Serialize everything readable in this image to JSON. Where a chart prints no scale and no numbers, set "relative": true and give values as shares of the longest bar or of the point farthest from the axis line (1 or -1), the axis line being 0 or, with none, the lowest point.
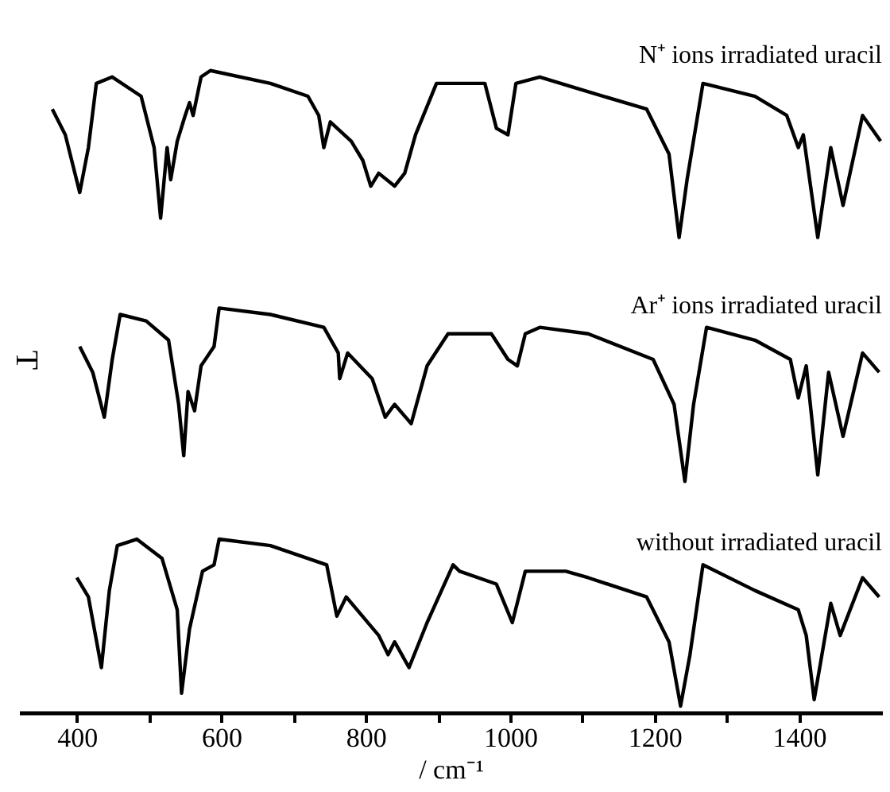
{
  "chart_data": {
    "type": "line",
    "relative": true,
    "xlabel": "/ cm⁻¹",
    "ylabel": "T",
    "xlim": [
      320,
      1515
    ],
    "xticks": [
      400,
      {
        "value": 500,
        "label": null
      },
      600,
      {
        "value": 700,
        "label": null
      },
      800,
      {
        "value": 900,
        "label": null
      },
      1000,
      {
        "value": 1100,
        "label": null
      },
      1200,
      {
        "value": 1300,
        "label": null
      },
      1400
    ],
    "grid": false,
    "legend": false,
    "marker": "none",
    "line_style": "solid",
    "series": [
      {
        "name": "N⁺ ions irradiated uracil",
        "color": "#000000",
        "x": [
          366,
          384,
          404,
          416,
          427,
          449,
          489,
          507,
          516,
          525,
          530,
          539,
          550,
          556,
          561,
          572,
          585,
          668,
          720,
          735,
          742,
          751,
          780,
          796,
          807,
          818,
          840,
          854,
          869,
          898,
          930,
          965,
          981,
          997,
          1008,
          1041,
          1099,
          1189,
          1220,
          1234,
          1245,
          1267,
          1339,
          1383,
          1399,
          1406,
          1426,
          1444,
          1461,
          1488,
          1513
        ],
        "values": [
          0.94,
          0.9,
          0.81,
          0.88,
          0.98,
          0.99,
          0.96,
          0.88,
          0.77,
          0.88,
          0.83,
          0.89,
          0.93,
          0.95,
          0.93,
          0.99,
          1.0,
          0.98,
          0.96,
          0.93,
          0.88,
          0.92,
          0.89,
          0.86,
          0.82,
          0.84,
          0.82,
          0.84,
          0.9,
          0.98,
          0.98,
          0.98,
          0.91,
          0.9,
          0.98,
          0.99,
          0.97,
          0.94,
          0.87,
          0.74,
          0.83,
          0.98,
          0.96,
          0.93,
          0.88,
          0.9,
          0.74,
          0.88,
          0.79,
          0.93,
          0.89
        ]
      },
      {
        "name": "Ar⁺ ions irradiated uracil",
        "color": "#000000",
        "x": [
          404,
          422,
          438,
          449,
          460,
          496,
          527,
          541,
          548,
          554,
          563,
          572,
          590,
          597,
          668,
          742,
          762,
          764,
          775,
          809,
          827,
          840,
          863,
          885,
          914,
          930,
          974,
          997,
          1010,
          1021,
          1041,
          1108,
          1198,
          1227,
          1242,
          1254,
          1272,
          1339,
          1388,
          1399,
          1410,
          1426,
          1441,
          1461,
          1488,
          1511
        ],
        "values": [
          0.57,
          0.53,
          0.46,
          0.55,
          0.62,
          0.61,
          0.58,
          0.48,
          0.4,
          0.5,
          0.47,
          0.54,
          0.57,
          0.63,
          0.62,
          0.6,
          0.56,
          0.52,
          0.56,
          0.52,
          0.46,
          0.48,
          0.45,
          0.54,
          0.59,
          0.59,
          0.59,
          0.55,
          0.54,
          0.59,
          0.6,
          0.59,
          0.55,
          0.48,
          0.36,
          0.48,
          0.6,
          0.58,
          0.55,
          0.49,
          0.54,
          0.37,
          0.53,
          0.43,
          0.56,
          0.53
        ]
      },
      {
        "name": "without irradiated uracil",
        "color": "#000000",
        "x": [
          400,
          416,
          434,
          445,
          456,
          483,
          518,
          539,
          545,
          556,
          574,
          590,
          597,
          668,
          746,
          760,
          773,
          818,
          831,
          840,
          860,
          885,
          921,
          930,
          981,
          1003,
          1021,
          1077,
          1108,
          1189,
          1220,
          1236,
          1249,
          1267,
          1339,
          1399,
          1410,
          1421,
          1444,
          1457,
          1488,
          1511
        ],
        "values": [
          0.21,
          0.18,
          0.07,
          0.19,
          0.26,
          0.27,
          0.24,
          0.16,
          0.03,
          0.13,
          0.22,
          0.23,
          0.27,
          0.26,
          0.23,
          0.15,
          0.18,
          0.12,
          0.09,
          0.11,
          0.07,
          0.14,
          0.23,
          0.22,
          0.2,
          0.14,
          0.22,
          0.22,
          0.21,
          0.18,
          0.11,
          0.01,
          0.09,
          0.23,
          0.19,
          0.16,
          0.12,
          0.02,
          0.17,
          0.12,
          0.21,
          0.18
        ]
      }
    ]
  }
}
